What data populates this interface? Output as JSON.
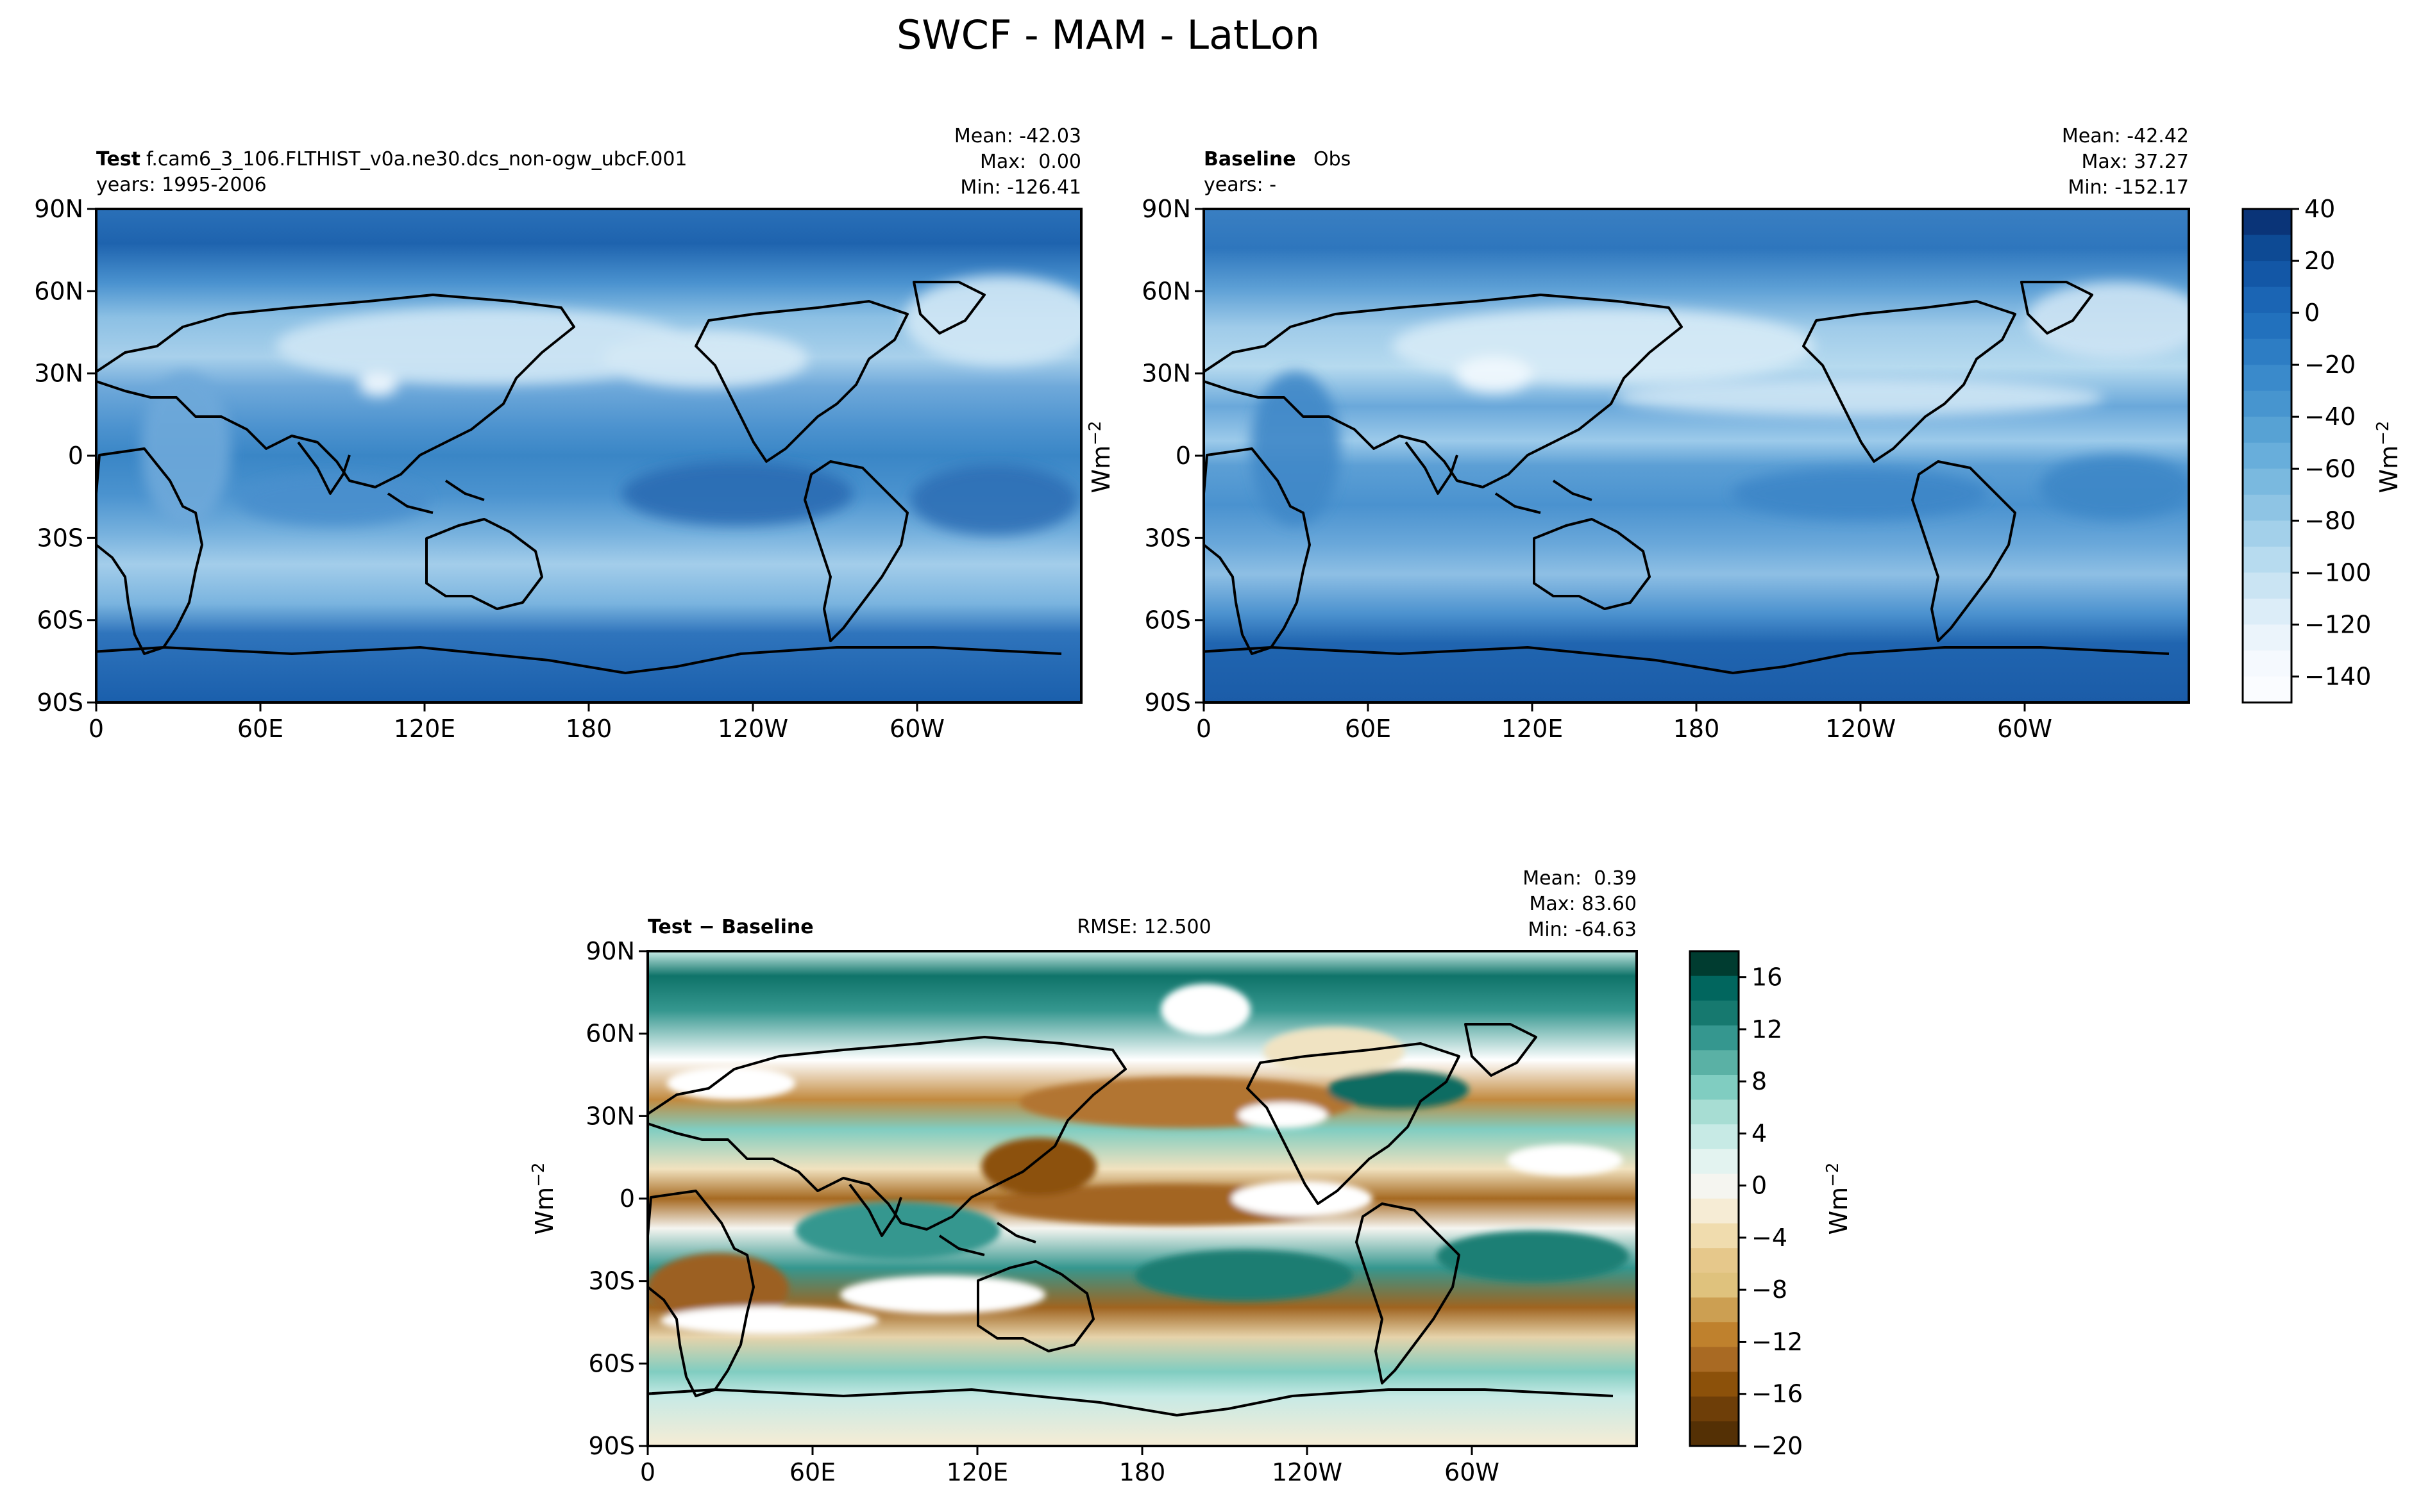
{
  "figure": {
    "title": "SWCF - MAM - LatLon",
    "colors": {
      "text": "#000000",
      "background": "#ffffff"
    }
  },
  "chart_data": [
    {
      "type": "heatmap",
      "panel": "test",
      "title_bold": "Test",
      "title_text": "f.cam6_3_106.FLTHIST_v0a.ne30.dcs_non-ogw_ubcF.001",
      "years": "years: 1995-2006",
      "stats": [
        "Mean: -42.03",
        "Max:  0.00",
        "Min: -126.41"
      ],
      "xlim": [
        0,
        360
      ],
      "ylim": [
        -90,
        90
      ],
      "xticks": [
        "0",
        "60E",
        "120E",
        "180",
        "120W",
        "60W"
      ],
      "yticks": [
        "90N",
        "60N",
        "30N",
        "0",
        "30S",
        "60S",
        "90S"
      ],
      "values_summary": {
        "mean": -42.03,
        "max": 0.0,
        "min": -126.41
      },
      "colormap": "Blues_r"
    },
    {
      "type": "heatmap",
      "panel": "baseline",
      "title_bold": "Baseline",
      "title_text": "Obs",
      "years": "years: -",
      "stats": [
        "Mean: -42.42",
        "Max: 37.27",
        "Min: -152.17"
      ],
      "xlim": [
        0,
        360
      ],
      "ylim": [
        -90,
        90
      ],
      "xticks": [
        "0",
        "60E",
        "120E",
        "180",
        "120W",
        "60W"
      ],
      "yticks": [
        "90N",
        "60N",
        "30N",
        "0",
        "30S",
        "60S",
        "90S"
      ],
      "ylabel": "Wm",
      "ylabel_sup": "−2",
      "values_summary": {
        "mean": -42.42,
        "max": 37.27,
        "min": -152.17
      },
      "colormap": "Blues_r",
      "colorbar": {
        "ticks": [
          "40",
          "20",
          "0",
          "−20",
          "−40",
          "−60",
          "−80",
          "−100",
          "−120",
          "−140"
        ],
        "range": [
          -150,
          40
        ],
        "label": "Wm",
        "label_sup": "−2",
        "colors": [
          "#0a3478",
          "#0d4a94",
          "#1357a6",
          "#1b65b4",
          "#2271bd",
          "#2d7dc4",
          "#3a8acb",
          "#4795cf",
          "#57a2d4",
          "#68aedb",
          "#7ab9df",
          "#8ec4e4",
          "#a3d0ea",
          "#b7dbef",
          "#cae4f3",
          "#dcedf8",
          "#ebf4fb",
          "#f5f9fe",
          "#fafcff"
        ]
      }
    },
    {
      "type": "heatmap",
      "panel": "difference",
      "title_bold": "Test − Baseline",
      "rmse": "RMSE: 12.500",
      "stats": [
        "Mean:  0.39",
        "Max: 83.60",
        "Min: -64.63"
      ],
      "xlim": [
        0,
        360
      ],
      "ylim": [
        -90,
        90
      ],
      "xticks": [
        "0",
        "60E",
        "120E",
        "180",
        "120W",
        "60W"
      ],
      "yticks": [
        "90N",
        "60N",
        "30N",
        "0",
        "30S",
        "60S",
        "90S"
      ],
      "ylabel": "Wm",
      "ylabel_sup": "−2",
      "values_summary": {
        "mean": 0.39,
        "max": 83.6,
        "min": -64.63,
        "rmse": 12.5
      },
      "colormap": "BrBG",
      "colorbar": {
        "ticks": [
          "16",
          "12",
          "8",
          "4",
          "0",
          "−4",
          "−8",
          "−12",
          "−16",
          "−20"
        ],
        "range": [
          -20,
          18
        ],
        "label": "Wm",
        "label_sup": "−2",
        "colors": [
          "#003c30",
          "#01665e",
          "#16796f",
          "#35978f",
          "#5ab1a5",
          "#80cdc1",
          "#a7ddd3",
          "#c7eae5",
          "#e3f3f0",
          "#f5f5f0",
          "#f6ecd5",
          "#f0dcae",
          "#e6c88b",
          "#dfc27d",
          "#cc9f52",
          "#bf812d",
          "#a96a23",
          "#8c510a",
          "#6e3e08",
          "#543005"
        ]
      }
    }
  ]
}
